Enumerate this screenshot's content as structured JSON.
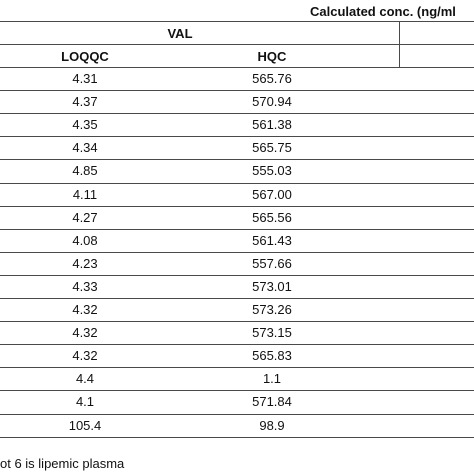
{
  "table": {
    "super_header": "Calculated conc. (ng/ml",
    "group_header": "VAL",
    "columns": [
      "LOQQC",
      "HQC"
    ],
    "rows": [
      [
        "4.31",
        "565.76"
      ],
      [
        "4.37",
        "570.94"
      ],
      [
        "4.35",
        "561.38"
      ],
      [
        "4.34",
        "565.75"
      ],
      [
        "4.85",
        "555.03"
      ],
      [
        "4.11",
        "567.00"
      ],
      [
        "4.27",
        "565.56"
      ],
      [
        "4.08",
        "561.43"
      ],
      [
        "4.23",
        "557.66"
      ],
      [
        "4.33",
        "573.01"
      ],
      [
        "4.32",
        "573.26"
      ],
      [
        "4.32",
        "573.15"
      ],
      [
        "4.32",
        "565.83"
      ],
      [
        "4.4",
        "1.1"
      ],
      [
        "4.1",
        "571.84"
      ],
      [
        "105.4",
        "98.9"
      ]
    ],
    "footnote": "ot 6 is lipemic plasma"
  }
}
